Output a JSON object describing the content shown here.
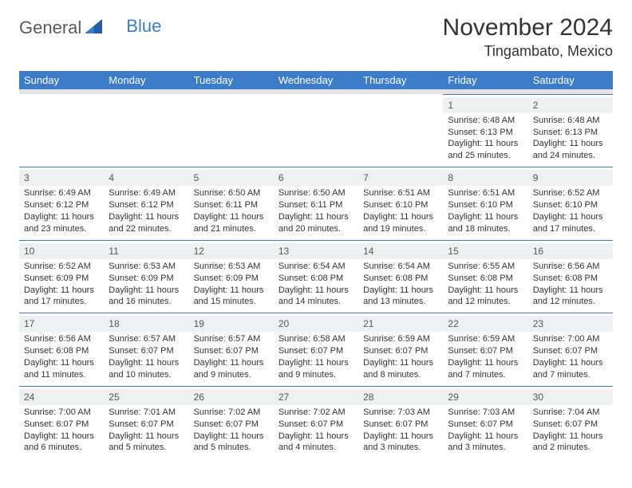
{
  "logo": {
    "general": "General",
    "blue": "Blue"
  },
  "title": "November 2024",
  "location": "Tingambato, Mexico",
  "weekdays": [
    "Sunday",
    "Monday",
    "Tuesday",
    "Wednesday",
    "Thursday",
    "Friday",
    "Saturday"
  ],
  "colors": {
    "header_blue": "#3d7cc9",
    "band_gray": "#e4e4e4",
    "daynum_bg": "#eef0f2",
    "text": "#333333",
    "logo_gray": "#5a5a5a"
  },
  "typography": {
    "title_fontsize": 30,
    "location_fontsize": 18,
    "weekday_fontsize": 13,
    "body_fontsize": 11,
    "logo_fontsize": 22
  },
  "weeks": [
    [
      {
        "day": "",
        "sunrise": "",
        "sunset": "",
        "daylight1": "",
        "daylight2": ""
      },
      {
        "day": "",
        "sunrise": "",
        "sunset": "",
        "daylight1": "",
        "daylight2": ""
      },
      {
        "day": "",
        "sunrise": "",
        "sunset": "",
        "daylight1": "",
        "daylight2": ""
      },
      {
        "day": "",
        "sunrise": "",
        "sunset": "",
        "daylight1": "",
        "daylight2": ""
      },
      {
        "day": "",
        "sunrise": "",
        "sunset": "",
        "daylight1": "",
        "daylight2": ""
      },
      {
        "day": "1",
        "sunrise": "Sunrise: 6:48 AM",
        "sunset": "Sunset: 6:13 PM",
        "daylight1": "Daylight: 11 hours",
        "daylight2": "and 25 minutes."
      },
      {
        "day": "2",
        "sunrise": "Sunrise: 6:48 AM",
        "sunset": "Sunset: 6:13 PM",
        "daylight1": "Daylight: 11 hours",
        "daylight2": "and 24 minutes."
      }
    ],
    [
      {
        "day": "3",
        "sunrise": "Sunrise: 6:49 AM",
        "sunset": "Sunset: 6:12 PM",
        "daylight1": "Daylight: 11 hours",
        "daylight2": "and 23 minutes."
      },
      {
        "day": "4",
        "sunrise": "Sunrise: 6:49 AM",
        "sunset": "Sunset: 6:12 PM",
        "daylight1": "Daylight: 11 hours",
        "daylight2": "and 22 minutes."
      },
      {
        "day": "5",
        "sunrise": "Sunrise: 6:50 AM",
        "sunset": "Sunset: 6:11 PM",
        "daylight1": "Daylight: 11 hours",
        "daylight2": "and 21 minutes."
      },
      {
        "day": "6",
        "sunrise": "Sunrise: 6:50 AM",
        "sunset": "Sunset: 6:11 PM",
        "daylight1": "Daylight: 11 hours",
        "daylight2": "and 20 minutes."
      },
      {
        "day": "7",
        "sunrise": "Sunrise: 6:51 AM",
        "sunset": "Sunset: 6:10 PM",
        "daylight1": "Daylight: 11 hours",
        "daylight2": "and 19 minutes."
      },
      {
        "day": "8",
        "sunrise": "Sunrise: 6:51 AM",
        "sunset": "Sunset: 6:10 PM",
        "daylight1": "Daylight: 11 hours",
        "daylight2": "and 18 minutes."
      },
      {
        "day": "9",
        "sunrise": "Sunrise: 6:52 AM",
        "sunset": "Sunset: 6:10 PM",
        "daylight1": "Daylight: 11 hours",
        "daylight2": "and 17 minutes."
      }
    ],
    [
      {
        "day": "10",
        "sunrise": "Sunrise: 6:52 AM",
        "sunset": "Sunset: 6:09 PM",
        "daylight1": "Daylight: 11 hours",
        "daylight2": "and 17 minutes."
      },
      {
        "day": "11",
        "sunrise": "Sunrise: 6:53 AM",
        "sunset": "Sunset: 6:09 PM",
        "daylight1": "Daylight: 11 hours",
        "daylight2": "and 16 minutes."
      },
      {
        "day": "12",
        "sunrise": "Sunrise: 6:53 AM",
        "sunset": "Sunset: 6:09 PM",
        "daylight1": "Daylight: 11 hours",
        "daylight2": "and 15 minutes."
      },
      {
        "day": "13",
        "sunrise": "Sunrise: 6:54 AM",
        "sunset": "Sunset: 6:08 PM",
        "daylight1": "Daylight: 11 hours",
        "daylight2": "and 14 minutes."
      },
      {
        "day": "14",
        "sunrise": "Sunrise: 6:54 AM",
        "sunset": "Sunset: 6:08 PM",
        "daylight1": "Daylight: 11 hours",
        "daylight2": "and 13 minutes."
      },
      {
        "day": "15",
        "sunrise": "Sunrise: 6:55 AM",
        "sunset": "Sunset: 6:08 PM",
        "daylight1": "Daylight: 11 hours",
        "daylight2": "and 12 minutes."
      },
      {
        "day": "16",
        "sunrise": "Sunrise: 6:56 AM",
        "sunset": "Sunset: 6:08 PM",
        "daylight1": "Daylight: 11 hours",
        "daylight2": "and 12 minutes."
      }
    ],
    [
      {
        "day": "17",
        "sunrise": "Sunrise: 6:56 AM",
        "sunset": "Sunset: 6:08 PM",
        "daylight1": "Daylight: 11 hours",
        "daylight2": "and 11 minutes."
      },
      {
        "day": "18",
        "sunrise": "Sunrise: 6:57 AM",
        "sunset": "Sunset: 6:07 PM",
        "daylight1": "Daylight: 11 hours",
        "daylight2": "and 10 minutes."
      },
      {
        "day": "19",
        "sunrise": "Sunrise: 6:57 AM",
        "sunset": "Sunset: 6:07 PM",
        "daylight1": "Daylight: 11 hours",
        "daylight2": "and 9 minutes."
      },
      {
        "day": "20",
        "sunrise": "Sunrise: 6:58 AM",
        "sunset": "Sunset: 6:07 PM",
        "daylight1": "Daylight: 11 hours",
        "daylight2": "and 9 minutes."
      },
      {
        "day": "21",
        "sunrise": "Sunrise: 6:59 AM",
        "sunset": "Sunset: 6:07 PM",
        "daylight1": "Daylight: 11 hours",
        "daylight2": "and 8 minutes."
      },
      {
        "day": "22",
        "sunrise": "Sunrise: 6:59 AM",
        "sunset": "Sunset: 6:07 PM",
        "daylight1": "Daylight: 11 hours",
        "daylight2": "and 7 minutes."
      },
      {
        "day": "23",
        "sunrise": "Sunrise: 7:00 AM",
        "sunset": "Sunset: 6:07 PM",
        "daylight1": "Daylight: 11 hours",
        "daylight2": "and 7 minutes."
      }
    ],
    [
      {
        "day": "24",
        "sunrise": "Sunrise: 7:00 AM",
        "sunset": "Sunset: 6:07 PM",
        "daylight1": "Daylight: 11 hours",
        "daylight2": "and 6 minutes."
      },
      {
        "day": "25",
        "sunrise": "Sunrise: 7:01 AM",
        "sunset": "Sunset: 6:07 PM",
        "daylight1": "Daylight: 11 hours",
        "daylight2": "and 5 minutes."
      },
      {
        "day": "26",
        "sunrise": "Sunrise: 7:02 AM",
        "sunset": "Sunset: 6:07 PM",
        "daylight1": "Daylight: 11 hours",
        "daylight2": "and 5 minutes."
      },
      {
        "day": "27",
        "sunrise": "Sunrise: 7:02 AM",
        "sunset": "Sunset: 6:07 PM",
        "daylight1": "Daylight: 11 hours",
        "daylight2": "and 4 minutes."
      },
      {
        "day": "28",
        "sunrise": "Sunrise: 7:03 AM",
        "sunset": "Sunset: 6:07 PM",
        "daylight1": "Daylight: 11 hours",
        "daylight2": "and 3 minutes."
      },
      {
        "day": "29",
        "sunrise": "Sunrise: 7:03 AM",
        "sunset": "Sunset: 6:07 PM",
        "daylight1": "Daylight: 11 hours",
        "daylight2": "and 3 minutes."
      },
      {
        "day": "30",
        "sunrise": "Sunrise: 7:04 AM",
        "sunset": "Sunset: 6:07 PM",
        "daylight1": "Daylight: 11 hours",
        "daylight2": "and 2 minutes."
      }
    ]
  ]
}
